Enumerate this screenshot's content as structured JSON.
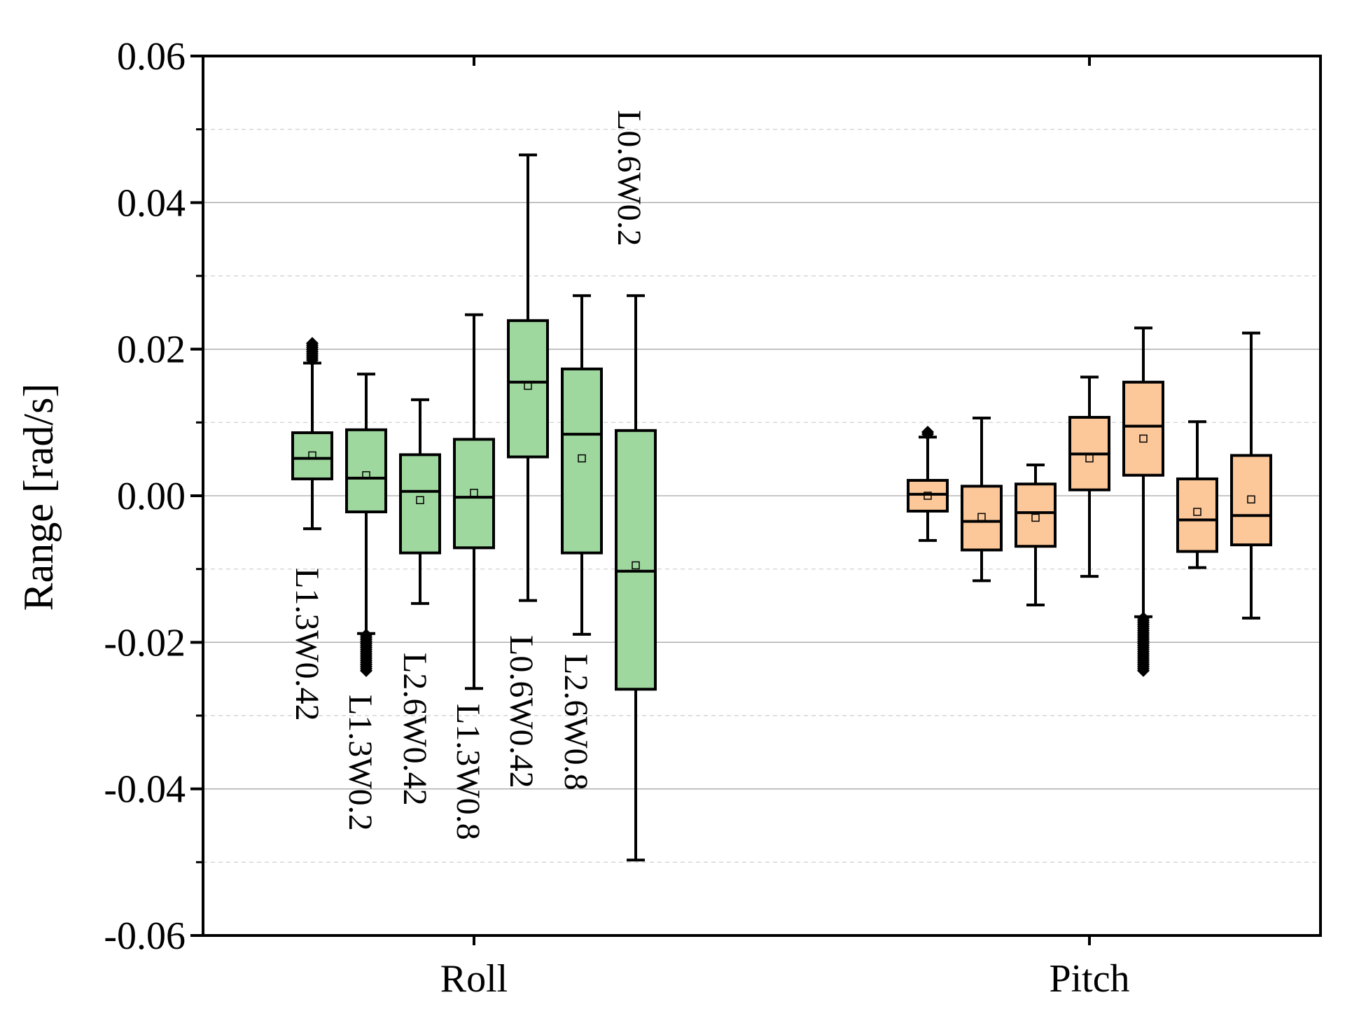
{
  "chart_data": {
    "type": "box",
    "ylabel": "Range [rad/s]",
    "ylim": [
      -0.06,
      0.06
    ],
    "yticks": [
      -0.06,
      -0.04,
      -0.02,
      0.0,
      0.02,
      0.04,
      0.06
    ],
    "ytick_labels": [
      "-0.06",
      "-0.04",
      "-0.02",
      "0.00",
      "0.02",
      "0.04",
      "0.06"
    ],
    "grid": true,
    "categories": [
      "Roll",
      "Pitch"
    ],
    "colors": {
      "Roll": "#9fd89f",
      "Pitch": "#fcc89a"
    },
    "groups": [
      {
        "category": "Roll",
        "boxes": [
          {
            "label": "L1.3W0.42",
            "whisker_low": -0.0045,
            "q1": 0.0023,
            "median": 0.0051,
            "q3": 0.0086,
            "whisker_high": 0.0181,
            "mean": 0.0055,
            "outliers_low": [],
            "outliers_high": [
              0.0183,
              0.0208
            ]
          },
          {
            "label": "L1.3W0.2",
            "whisker_low": -0.0188,
            "q1": -0.0022,
            "median": 0.0024,
            "q3": 0.009,
            "whisker_high": 0.0166,
            "mean": 0.0028,
            "outliers_low": [
              -0.019,
              -0.024
            ],
            "outliers_high": []
          },
          {
            "label": "L2.6W0.42",
            "whisker_low": -0.0147,
            "q1": -0.0078,
            "median": 0.0006,
            "q3": 0.0056,
            "whisker_high": 0.0131,
            "mean": -0.0006,
            "outliers_low": [],
            "outliers_high": []
          },
          {
            "label": "L1.3W0.8",
            "whisker_low": -0.0263,
            "q1": -0.0071,
            "median": -0.0002,
            "q3": 0.0077,
            "whisker_high": 0.0247,
            "mean": 0.0004,
            "outliers_low": [],
            "outliers_high": []
          },
          {
            "label": "L0.6W0.42",
            "whisker_low": -0.0143,
            "q1": 0.0053,
            "median": 0.0155,
            "q3": 0.0239,
            "whisker_high": 0.0465,
            "mean": 0.015,
            "outliers_low": [],
            "outliers_high": []
          },
          {
            "label": "L2.6W0.8",
            "whisker_low": -0.0189,
            "q1": -0.0078,
            "median": 0.0084,
            "q3": 0.0173,
            "whisker_high": 0.0273,
            "mean": 0.0051,
            "outliers_low": [],
            "outliers_high": []
          },
          {
            "label": "L0.6W0.2",
            "whisker_low": -0.0497,
            "q1": -0.0264,
            "median": -0.0103,
            "q3": 0.0089,
            "whisker_high": 0.0273,
            "mean": -0.0095,
            "outliers_low": [],
            "outliers_high": []
          }
        ]
      },
      {
        "category": "Pitch",
        "boxes": [
          {
            "whisker_low": -0.0061,
            "q1": -0.0021,
            "median": 0.0002,
            "q3": 0.0021,
            "whisker_high": 0.008,
            "mean": 0.0,
            "outliers_low": [],
            "outliers_high": [
              0.0082,
              0.0087
            ]
          },
          {
            "whisker_low": -0.0116,
            "q1": -0.0074,
            "median": -0.0035,
            "q3": 0.0013,
            "whisker_high": 0.0106,
            "mean": -0.0029,
            "outliers_low": [],
            "outliers_high": []
          },
          {
            "whisker_low": -0.0149,
            "q1": -0.0069,
            "median": -0.0023,
            "q3": 0.0016,
            "whisker_high": 0.0042,
            "mean": -0.003,
            "outliers_low": [],
            "outliers_high": []
          },
          {
            "whisker_low": -0.011,
            "q1": 0.0008,
            "median": 0.0057,
            "q3": 0.0107,
            "whisker_high": 0.0162,
            "mean": 0.0051,
            "outliers_low": [],
            "outliers_high": []
          },
          {
            "whisker_low": -0.0165,
            "q1": 0.0028,
            "median": 0.0095,
            "q3": 0.0155,
            "whisker_high": 0.0229,
            "mean": 0.0078,
            "outliers_low": [
              -0.0167,
              -0.024
            ],
            "outliers_high": []
          },
          {
            "whisker_low": -0.0098,
            "q1": -0.0076,
            "median": -0.0033,
            "q3": 0.0023,
            "whisker_high": 0.0101,
            "mean": -0.0022,
            "outliers_low": [],
            "outliers_high": []
          },
          {
            "whisker_low": -0.0167,
            "q1": -0.0067,
            "median": -0.0027,
            "q3": 0.0055,
            "whisker_high": 0.0222,
            "mean": -0.0005,
            "outliers_low": [],
            "outliers_high": []
          }
        ]
      }
    ]
  }
}
